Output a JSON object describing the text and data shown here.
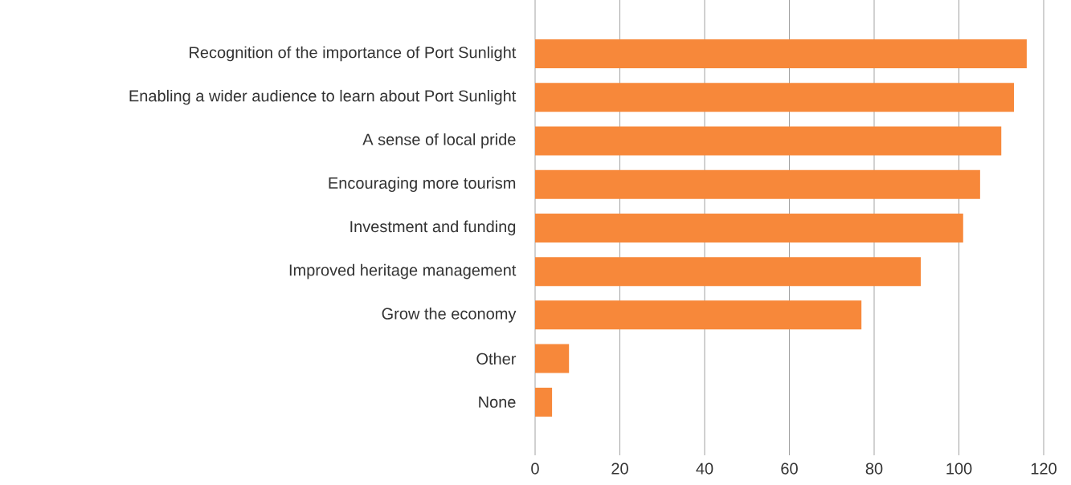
{
  "chart_data": {
    "type": "bar",
    "orientation": "horizontal",
    "categories": [
      "Recognition of the importance of Port Sunlight",
      "Enabling a wider audience to learn about Port Sunlight",
      "A sense of local pride",
      "Encouraging more tourism",
      "Investment and funding",
      "Improved heritage management",
      "Grow the economy",
      "Other",
      "None"
    ],
    "values": [
      116,
      113,
      110,
      105,
      101,
      91,
      77,
      8,
      4
    ],
    "color": "#f7883a",
    "xlim": [
      0,
      120
    ],
    "xticks": [
      0,
      20,
      40,
      60,
      80,
      100,
      120
    ],
    "grid": "x"
  }
}
